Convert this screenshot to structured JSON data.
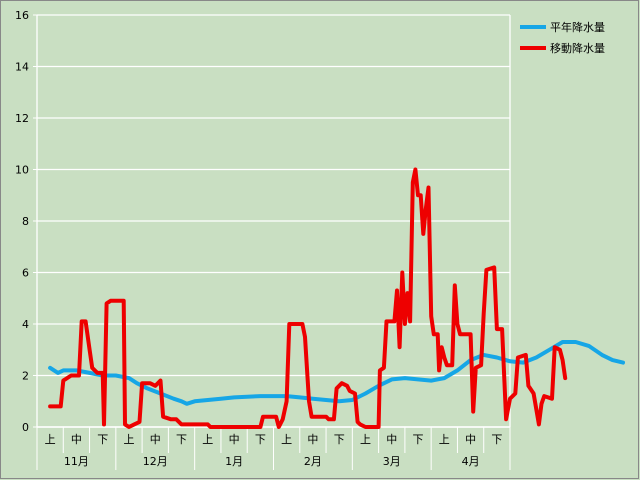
{
  "chart_data": {
    "type": "line",
    "title": "",
    "xlabel": "",
    "ylabel": "",
    "ylim": [
      0,
      16
    ],
    "yticks": [
      0,
      2,
      4,
      6,
      8,
      10,
      12,
      14,
      16
    ],
    "grid": true,
    "legend_position": "top-right",
    "months": [
      "11月",
      "12月",
      "1月",
      "2月",
      "3月",
      "4月"
    ],
    "dekads": [
      "上",
      "中",
      "下"
    ],
    "series": [
      {
        "name": "平年降水量",
        "color": "#16a6e6",
        "x": [
          0,
          1,
          2,
          3,
          4,
          5,
          6,
          7,
          8,
          9,
          10,
          11,
          12,
          13,
          14,
          15,
          16,
          17
        ],
        "values": [
          2.2,
          2.2,
          2.1,
          2.0,
          1.7,
          1.3,
          1.0,
          1.1,
          1.2,
          1.2,
          1.2,
          1.1,
          1.0,
          1.4,
          1.9,
          1.8,
          2.3,
          2.8
        ],
        "points": [
          [
            0.0,
            2.3
          ],
          [
            0.15,
            2.2
          ],
          [
            0.3,
            2.1
          ],
          [
            0.5,
            2.2
          ],
          [
            1.0,
            2.2
          ],
          [
            1.5,
            2.1
          ],
          [
            2.0,
            2.0
          ],
          [
            2.5,
            2.0
          ],
          [
            3.0,
            1.9
          ],
          [
            3.3,
            1.7
          ],
          [
            3.7,
            1.5
          ],
          [
            4.2,
            1.3
          ],
          [
            4.7,
            1.1
          ],
          [
            5.0,
            1.0
          ],
          [
            5.2,
            0.9
          ],
          [
            5.5,
            1.0
          ],
          [
            6.0,
            1.05
          ],
          [
            6.5,
            1.1
          ],
          [
            7.0,
            1.15
          ],
          [
            8.0,
            1.2
          ],
          [
            9.0,
            1.2
          ],
          [
            9.5,
            1.15
          ],
          [
            10.0,
            1.1
          ],
          [
            10.5,
            1.05
          ],
          [
            11.0,
            1.0
          ],
          [
            11.5,
            1.05
          ],
          [
            12.0,
            1.3
          ],
          [
            12.5,
            1.6
          ],
          [
            13.0,
            1.85
          ],
          [
            13.5,
            1.9
          ],
          [
            14.0,
            1.85
          ],
          [
            14.5,
            1.8
          ],
          [
            15.0,
            1.9
          ],
          [
            15.5,
            2.2
          ],
          [
            16.0,
            2.6
          ],
          [
            16.5,
            2.8
          ],
          [
            17.0,
            2.7
          ],
          [
            17.5,
            2.55
          ],
          [
            18.0,
            2.5
          ],
          [
            18.5,
            2.7
          ],
          [
            19.0,
            3.0
          ],
          [
            19.5,
            3.3
          ],
          [
            20.0,
            3.3
          ],
          [
            20.5,
            3.15
          ],
          [
            21.0,
            2.8
          ],
          [
            21.4,
            2.6
          ],
          [
            21.8,
            2.5
          ]
        ]
      },
      {
        "name": "移動降水量",
        "color": "#ee0000",
        "x": [
          0,
          1,
          2,
          3,
          4,
          5,
          6,
          7,
          8,
          9,
          10,
          11,
          12,
          13,
          14,
          15,
          16,
          17
        ],
        "values": [
          0.8,
          4.1,
          4.9,
          0.1,
          1.7,
          0.1,
          0.0,
          0.4,
          4.0,
          0.4,
          1.6,
          0.0,
          4.1,
          10.0,
          3.6,
          3.6,
          6.2,
          2.8
        ],
        "points": [
          [
            0.0,
            0.8
          ],
          [
            0.4,
            0.8
          ],
          [
            0.5,
            1.8
          ],
          [
            0.8,
            2.0
          ],
          [
            1.1,
            2.0
          ],
          [
            1.2,
            4.1
          ],
          [
            1.35,
            4.1
          ],
          [
            1.5,
            3.0
          ],
          [
            1.6,
            2.3
          ],
          [
            1.8,
            2.1
          ],
          [
            2.0,
            2.1
          ],
          [
            2.05,
            0.1
          ],
          [
            2.15,
            4.8
          ],
          [
            2.3,
            4.9
          ],
          [
            2.8,
            4.9
          ],
          [
            2.85,
            0.1
          ],
          [
            3.0,
            0.0
          ],
          [
            3.2,
            0.1
          ],
          [
            3.4,
            0.2
          ],
          [
            3.5,
            1.7
          ],
          [
            3.8,
            1.7
          ],
          [
            4.0,
            1.6
          ],
          [
            4.2,
            1.8
          ],
          [
            4.3,
            0.4
          ],
          [
            4.6,
            0.3
          ],
          [
            4.8,
            0.3
          ],
          [
            5.0,
            0.1
          ],
          [
            5.5,
            0.1
          ],
          [
            6.0,
            0.1
          ],
          [
            6.1,
            0.0
          ],
          [
            8.0,
            0.0
          ],
          [
            8.1,
            0.4
          ],
          [
            8.6,
            0.4
          ],
          [
            8.7,
            0.0
          ],
          [
            8.85,
            0.3
          ],
          [
            9.0,
            1.0
          ],
          [
            9.1,
            4.0
          ],
          [
            9.6,
            4.0
          ],
          [
            9.7,
            3.5
          ],
          [
            9.85,
            1.0
          ],
          [
            9.95,
            0.4
          ],
          [
            10.5,
            0.4
          ],
          [
            10.6,
            0.3
          ],
          [
            10.8,
            0.3
          ],
          [
            10.9,
            1.5
          ],
          [
            11.1,
            1.7
          ],
          [
            11.3,
            1.6
          ],
          [
            11.4,
            1.4
          ],
          [
            11.6,
            1.3
          ],
          [
            11.7,
            0.2
          ],
          [
            11.8,
            0.1
          ],
          [
            12.0,
            0.0
          ],
          [
            12.5,
            0.0
          ],
          [
            12.55,
            2.2
          ],
          [
            12.7,
            2.3
          ],
          [
            12.8,
            4.1
          ],
          [
            13.1,
            4.1
          ],
          [
            13.2,
            5.3
          ],
          [
            13.3,
            3.1
          ],
          [
            13.4,
            6.0
          ],
          [
            13.5,
            4.0
          ],
          [
            13.6,
            5.2
          ],
          [
            13.7,
            4.1
          ],
          [
            13.8,
            9.5
          ],
          [
            13.9,
            10.0
          ],
          [
            14.0,
            9.0
          ],
          [
            14.1,
            9.0
          ],
          [
            14.2,
            7.5
          ],
          [
            14.3,
            8.5
          ],
          [
            14.4,
            9.3
          ],
          [
            14.5,
            4.3
          ],
          [
            14.6,
            3.6
          ],
          [
            14.75,
            3.6
          ],
          [
            14.8,
            2.2
          ],
          [
            14.9,
            3.1
          ],
          [
            15.0,
            2.7
          ],
          [
            15.1,
            2.4
          ],
          [
            15.3,
            2.4
          ],
          [
            15.4,
            5.5
          ],
          [
            15.5,
            4.0
          ],
          [
            15.6,
            3.6
          ],
          [
            16.0,
            3.6
          ],
          [
            16.1,
            0.6
          ],
          [
            16.2,
            2.3
          ],
          [
            16.4,
            2.4
          ],
          [
            16.5,
            4.4
          ],
          [
            16.6,
            6.1
          ],
          [
            16.9,
            6.2
          ],
          [
            17.0,
            3.8
          ],
          [
            17.2,
            3.8
          ],
          [
            17.35,
            0.3
          ],
          [
            17.5,
            1.1
          ],
          [
            17.7,
            1.3
          ],
          [
            17.8,
            2.7
          ],
          [
            18.1,
            2.8
          ],
          [
            18.2,
            1.6
          ],
          [
            18.4,
            1.3
          ],
          [
            18.6,
            0.1
          ],
          [
            18.7,
            0.9
          ],
          [
            18.8,
            1.2
          ],
          [
            19.1,
            1.1
          ],
          [
            19.2,
            3.1
          ],
          [
            19.4,
            3.0
          ],
          [
            19.5,
            2.6
          ],
          [
            19.6,
            1.9
          ]
        ]
      }
    ]
  }
}
